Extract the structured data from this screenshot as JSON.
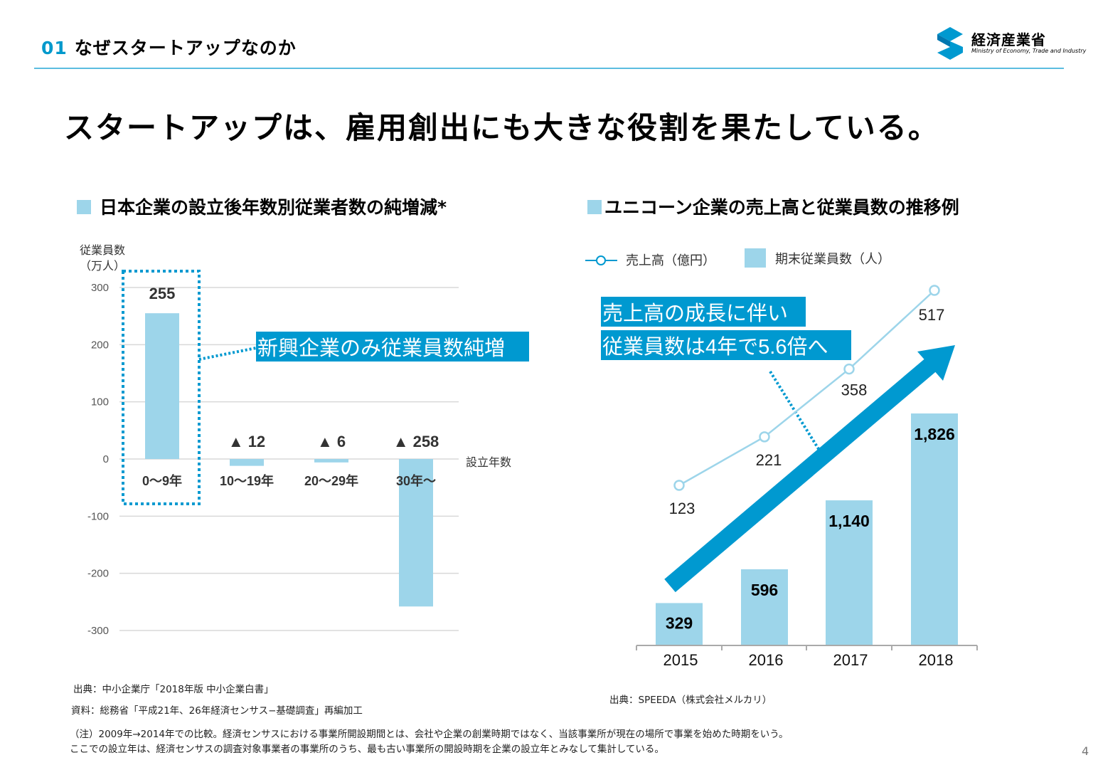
{
  "header": {
    "section_number": "01",
    "section_title": "なぜスタートアップなのか",
    "logo_jp": "経済産業省",
    "logo_en": "Ministry of Economy, Trade and Industry"
  },
  "main_title": "スタートアップは、雇用創出にも大きな役割を果たしている。",
  "colors": {
    "accent": "#0099d0",
    "bar": "#9dd5ea",
    "rule": "#5bbde0",
    "grid": "#d9d9d9"
  },
  "chart_data": [
    {
      "type": "bar",
      "title": "日本企業の設立後年数別従業者数の純増減*",
      "ylabel_line1": "従業員数",
      "ylabel_line2": "（万人）",
      "xlabel": "設立年数",
      "categories": [
        "0〜9年",
        "10〜19年",
        "20〜29年",
        "30年〜"
      ],
      "values": [
        255,
        -12,
        -6,
        -258
      ],
      "data_labels": [
        "255",
        "▲ 12",
        "▲ 6",
        "▲ 258"
      ],
      "ylim": [
        -300,
        300
      ],
      "yticks": [
        300,
        200,
        100,
        0,
        -100,
        -200,
        -300
      ],
      "ytick_labels": [
        "300",
        "200",
        "100",
        "0",
        "-100",
        "-200",
        "-300"
      ],
      "grid": true,
      "highlight_category": "0〜9年",
      "callout": "新興企業のみ従業員数純増"
    },
    {
      "type": "bar+line",
      "title": "ユニコーン企業の売上高と従業員数の推移例",
      "categories": [
        "2015",
        "2016",
        "2017",
        "2018"
      ],
      "series": [
        {
          "name": "売上高（億円）",
          "type": "line",
          "values": [
            123,
            221,
            358,
            517
          ],
          "labels": [
            "123",
            "221",
            "358",
            "517"
          ]
        },
        {
          "name": "期末従業員数（人）",
          "type": "bar",
          "values": [
            329,
            596,
            1140,
            1826
          ],
          "labels": [
            "329",
            "596",
            "1,140",
            "1,826"
          ]
        }
      ],
      "legend_position": "top-left",
      "callout_line1": "売上高の成長に伴い",
      "callout_line2": "従業員数は4年で5.6倍へ"
    }
  ],
  "notes": {
    "left_source": "出典：中小企業庁「2018年版 中小企業白書」",
    "left_data": "資料：総務省「平成21年、26年経済センサス−基礎調査」再編加工",
    "right_source": "出典：SPEEDA（株式会社メルカリ）",
    "footnote_1": "（注）2009年→2014年での比較。経済センサスにおける事業所開設期間とは、会社や企業の創業時期ではなく、当該事業所が現在の場所で事業を始めた時期をいう。",
    "footnote_2": "ここでの設立年は、経済センサスの調査対象事業者の事業所のうち、最も古い事業所の開設時期を企業の設立年とみなして集計している。"
  },
  "page_number": "4"
}
